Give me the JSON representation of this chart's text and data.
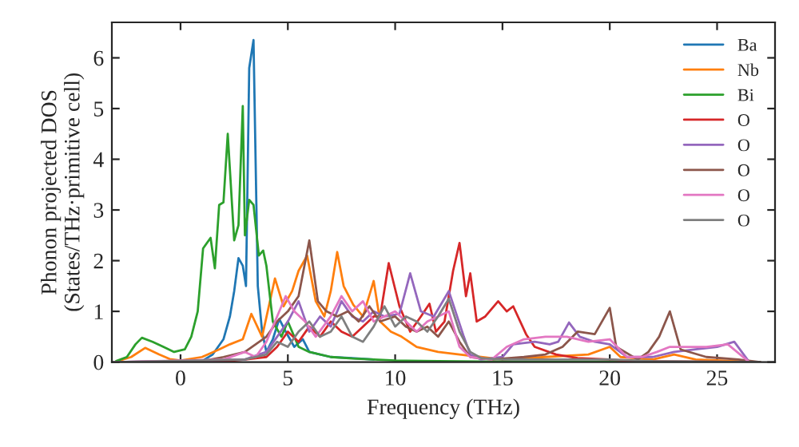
{
  "chart_data": {
    "type": "line",
    "xlabel": "Frequency (THz)",
    "ylabel": "Phonon projected DOS\n(States/THz·primitive cell)",
    "xlim": [
      -3.2,
      27.7
    ],
    "ylim": [
      0,
      6.7
    ],
    "xticks": [
      0,
      5,
      10,
      15,
      20,
      25
    ],
    "yticks": [
      0,
      1,
      2,
      3,
      4,
      5,
      6
    ],
    "grid": false,
    "legend": "top right",
    "marker": "none",
    "line_style": "solid",
    "series": [
      {
        "name": "Ba",
        "color": "#1f77b4",
        "x": [
          -3,
          0,
          1,
          1.5,
          2.0,
          2.3,
          2.5,
          2.7,
          2.9,
          3.05,
          3.2,
          3.4,
          3.6,
          3.8,
          4.0,
          4.3,
          4.6,
          4.9,
          5.3,
          5.7,
          6.0,
          6.5,
          7,
          8,
          9
        ],
        "values": [
          0,
          0,
          0.02,
          0.15,
          0.45,
          0.9,
          1.4,
          2.05,
          1.9,
          1.5,
          5.8,
          6.35,
          1.5,
          0.6,
          0.2,
          0.45,
          0.85,
          0.6,
          0.3,
          0.45,
          0.2,
          0.15,
          0.1,
          0.08,
          0.05
        ]
      },
      {
        "name": "Nb",
        "color": "#ff7f0e",
        "x": [
          -3,
          -2.3,
          -1.65,
          -1,
          -0.5,
          0,
          1,
          1.8,
          2.3,
          2.9,
          3.3,
          3.8,
          4.4,
          4.8,
          5.2,
          5.5,
          5.9,
          6.3,
          6.7,
          7.0,
          7.3,
          7.6,
          8.05,
          8.5,
          9.0,
          9.3,
          9.8,
          10.3,
          11,
          12,
          13,
          14,
          15,
          17,
          19,
          20,
          20.5,
          22,
          23,
          24,
          27
        ],
        "values": [
          0.01,
          0.1,
          0.28,
          0.15,
          0.06,
          0.03,
          0.1,
          0.25,
          0.35,
          0.45,
          0.95,
          0.5,
          1.65,
          1.1,
          1.4,
          1.8,
          2.1,
          1.2,
          0.9,
          1.4,
          2.17,
          1.5,
          1.13,
          0.9,
          1.6,
          0.8,
          0.6,
          0.5,
          0.3,
          0.2,
          0.15,
          0.1,
          0.05,
          0.1,
          0.15,
          0.3,
          0.1,
          0.05,
          0.15,
          0.05,
          0
        ]
      },
      {
        "name": "Bi",
        "color": "#2ca02c",
        "x": [
          -3,
          -2.5,
          -2.1,
          -1.8,
          -1.3,
          -0.8,
          -0.3,
          0.2,
          0.5,
          0.8,
          1.05,
          1.4,
          1.6,
          1.8,
          2.0,
          2.2,
          2.5,
          2.7,
          2.9,
          3.0,
          3.2,
          3.4,
          3.65,
          3.85,
          4.0,
          4.3,
          4.7,
          5.0,
          5.5,
          6,
          7,
          8,
          9,
          10,
          12,
          14,
          27
        ],
        "values": [
          0.02,
          0.1,
          0.35,
          0.48,
          0.4,
          0.3,
          0.2,
          0.25,
          0.5,
          1.0,
          2.24,
          2.45,
          1.85,
          3.1,
          3.15,
          4.5,
          2.4,
          2.7,
          5.05,
          2.5,
          3.2,
          3.1,
          2.1,
          2.2,
          1.9,
          0.8,
          0.5,
          0.8,
          0.3,
          0.2,
          0.1,
          0.07,
          0.05,
          0.03,
          0.02,
          0.01,
          0
        ]
      },
      {
        "name": "O",
        "color": "#d62728",
        "x": [
          -3,
          2,
          3,
          4,
          4.5,
          5,
          5.5,
          6,
          6.5,
          7,
          7.5,
          8,
          8.5,
          9,
          9.3,
          9.7,
          10.2,
          10.7,
          11.2,
          11.6,
          11.9,
          12.3,
          12.7,
          13.0,
          13.3,
          13.5,
          13.8,
          14.2,
          14.8,
          15.2,
          15.5,
          16.1,
          16.5,
          17.5,
          18.5,
          20,
          21,
          27
        ],
        "values": [
          0,
          0.01,
          0.05,
          0.1,
          0.3,
          0.6,
          0.4,
          0.7,
          0.5,
          0.8,
          0.6,
          0.5,
          0.7,
          0.9,
          0.9,
          1.95,
          1.1,
          0.6,
          0.9,
          1.15,
          0.6,
          0.8,
          1.8,
          2.35,
          1.3,
          1.75,
          0.8,
          0.9,
          1.2,
          1.0,
          1.1,
          0.55,
          0.3,
          0.15,
          0.08,
          0.05,
          0.02,
          0
        ]
      },
      {
        "name": "O",
        "color": "#9467bd",
        "x": [
          -3,
          3,
          4,
          4.5,
          5,
          5.5,
          6,
          6.5,
          7,
          7.5,
          8,
          8.5,
          9,
          9.5,
          10.2,
          10.7,
          11.2,
          11.8,
          12.5,
          13.2,
          13.5,
          14,
          15,
          15.5,
          16.5,
          17.2,
          17.6,
          18.1,
          18.6,
          19.3,
          20,
          20.8,
          22,
          23,
          24,
          25,
          25.8,
          26.5
        ],
        "values": [
          0,
          0.05,
          0.2,
          0.5,
          0.8,
          1.2,
          0.6,
          0.9,
          0.7,
          1.2,
          0.9,
          0.8,
          1.0,
          0.9,
          0.95,
          1.75,
          1.0,
          0.9,
          1.4,
          0.5,
          0.15,
          0.05,
          0.1,
          0.35,
          0.4,
          0.35,
          0.4,
          0.78,
          0.5,
          0.4,
          0.35,
          0.1,
          0.1,
          0.2,
          0.25,
          0.3,
          0.4,
          0
        ]
      },
      {
        "name": "O",
        "color": "#8c564b",
        "x": [
          -3,
          1,
          2,
          3,
          4,
          4.5,
          5,
          5.5,
          6.0,
          6.4,
          6.8,
          7.3,
          7.8,
          8.3,
          8.8,
          9.3,
          10,
          10.5,
          11,
          11.5,
          12,
          12.5,
          13,
          13.5,
          14.5,
          16,
          17,
          17.8,
          18.5,
          19.3,
          20,
          20.3,
          21.3,
          21.8,
          22.3,
          22.8,
          23.3,
          24.5,
          26,
          27
        ],
        "values": [
          0,
          0.02,
          0.1,
          0.2,
          0.5,
          0.8,
          1.0,
          1.3,
          2.4,
          1.2,
          1.0,
          0.9,
          1.0,
          0.8,
          1.1,
          0.8,
          0.9,
          0.7,
          0.6,
          0.7,
          0.5,
          0.8,
          0.4,
          0.1,
          0.05,
          0.1,
          0.15,
          0.3,
          0.6,
          0.55,
          1.07,
          0.3,
          0.05,
          0.2,
          0.5,
          1.0,
          0.25,
          0.1,
          0.05,
          0
        ]
      },
      {
        "name": "O",
        "color": "#e377c2",
        "x": [
          -3,
          2,
          3,
          3.5,
          4,
          4.5,
          4.9,
          5.3,
          5.8,
          6.3,
          7,
          7.5,
          8,
          8.5,
          9,
          9.5,
          10,
          10.5,
          11,
          11.5,
          12,
          12.5,
          13,
          13.5,
          14.5,
          15.2,
          16,
          17,
          18,
          19,
          20,
          20.8,
          21.5,
          22.2,
          22.8,
          23.5,
          24.5,
          25.5,
          26.5
        ],
        "values": [
          0,
          0.05,
          0.2,
          0.1,
          0.4,
          0.9,
          1.3,
          1.0,
          0.8,
          0.5,
          0.9,
          1.3,
          1.0,
          1.2,
          0.8,
          0.9,
          1.0,
          0.8,
          0.6,
          0.8,
          0.9,
          1.0,
          0.3,
          0.1,
          0.05,
          0.3,
          0.45,
          0.5,
          0.5,
          0.4,
          0.45,
          0.1,
          0.1,
          0.2,
          0.3,
          0.3,
          0.3,
          0.35,
          0
        ]
      },
      {
        "name": "O",
        "color": "#7f7f7f",
        "x": [
          -3,
          3,
          4,
          4.5,
          5,
          5.5,
          6,
          6.5,
          7,
          7.5,
          8,
          8.5,
          9,
          9.5,
          10,
          10.5,
          11,
          11.5,
          12,
          12.5,
          13,
          13.5,
          14,
          15,
          17,
          20,
          22,
          27
        ],
        "values": [
          0,
          0.05,
          0.15,
          0.4,
          0.3,
          0.6,
          0.8,
          0.5,
          0.6,
          0.9,
          0.5,
          0.4,
          0.7,
          1.1,
          0.7,
          0.9,
          0.8,
          0.6,
          0.9,
          1.25,
          0.6,
          0.2,
          0.08,
          0.05,
          0.05,
          0.05,
          0.02,
          0
        ]
      }
    ]
  }
}
